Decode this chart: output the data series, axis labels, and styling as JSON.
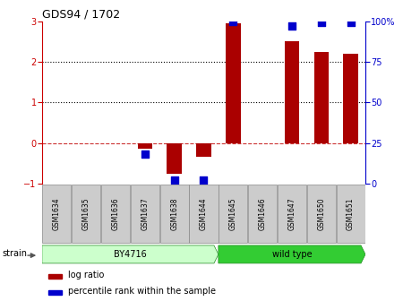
{
  "title": "GDS94 / 1702",
  "samples": [
    "GSM1634",
    "GSM1635",
    "GSM1636",
    "GSM1637",
    "GSM1638",
    "GSM1644",
    "GSM1645",
    "GSM1646",
    "GSM1647",
    "GSM1650",
    "GSM1651"
  ],
  "log_ratio": [
    0.0,
    0.0,
    0.0,
    -0.15,
    -0.75,
    -0.35,
    2.95,
    0.0,
    2.5,
    2.25,
    2.2
  ],
  "percentile_rank": [
    null,
    null,
    null,
    18,
    2,
    2,
    100,
    null,
    97,
    99,
    99
  ],
  "by4716_samples": 6,
  "wildtype_samples": 5,
  "bar_color": "#AA0000",
  "dot_color": "#0000CC",
  "ylim_left": [
    -1,
    3
  ],
  "ylim_right": [
    0,
    100
  ],
  "yticks_left": [
    -1,
    0,
    1,
    2,
    3
  ],
  "yticks_right": [
    0,
    25,
    50,
    75,
    100
  ],
  "hline_zero_color": "#CC3333",
  "hline_other_color": "#000000",
  "background_color": "#ffffff",
  "left_axis_color": "#CC0000",
  "right_axis_color": "#0000CC",
  "bar_width": 0.5,
  "dot_size": 30,
  "by4716_color": "#CCFFCC",
  "wildtype_color": "#33CC33",
  "sample_box_color": "#CCCCCC",
  "sample_box_edge": "#888888"
}
